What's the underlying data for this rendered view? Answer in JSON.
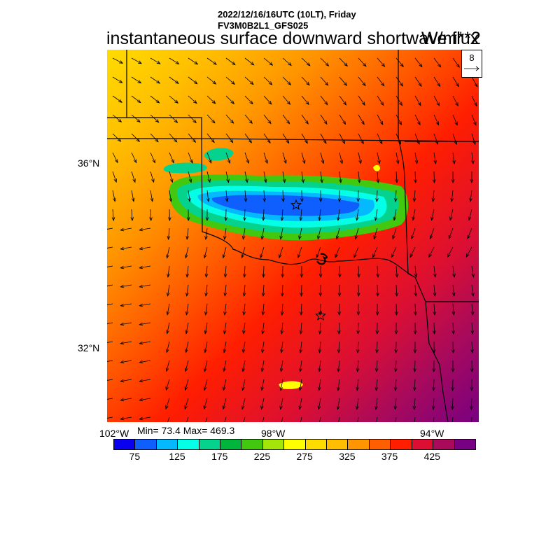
{
  "header": {
    "datetime_line": "2022/12/16/16UTC (10LT), Friday",
    "model_line": "FV3M0B2L1_GFS025",
    "title": "instantaneous surface downward shortwave flux",
    "units": "W/m**2"
  },
  "reference_vector": {
    "label": "8"
  },
  "axes": {
    "lat_labels": [
      "36°N",
      "32°N"
    ],
    "lon_labels": [
      "102°W",
      "98°W",
      "94°W"
    ]
  },
  "stats": {
    "minmax_text": "Min= 73.4 Max= 469.3"
  },
  "colorbar": {
    "colors": [
      "#0a00f0",
      "#0f5fff",
      "#05b9ff",
      "#05ffe6",
      "#05d28c",
      "#00b43c",
      "#41c80f",
      "#a5e60a",
      "#ffff00",
      "#ffdc00",
      "#ffbe00",
      "#ff9600",
      "#ff5f00",
      "#ff1e00",
      "#dc0f32",
      "#aa0a5a",
      "#780082"
    ],
    "labels": [
      "75",
      "125",
      "175",
      "225",
      "275",
      "325",
      "375",
      "425"
    ]
  },
  "map": {
    "background_color": "#ff1e00",
    "gradient_colors": [
      "#ffdc00",
      "#ffbe00",
      "#ff9600",
      "#ff5f00",
      "#ff1e00",
      "#dc0f32",
      "#aa0a5a",
      "#780082"
    ],
    "cloud_colors": [
      "#41c80f",
      "#05d28c",
      "#05ffe6",
      "#05b9ff",
      "#0f5fff"
    ],
    "markers": [
      "star",
      "star"
    ]
  }
}
